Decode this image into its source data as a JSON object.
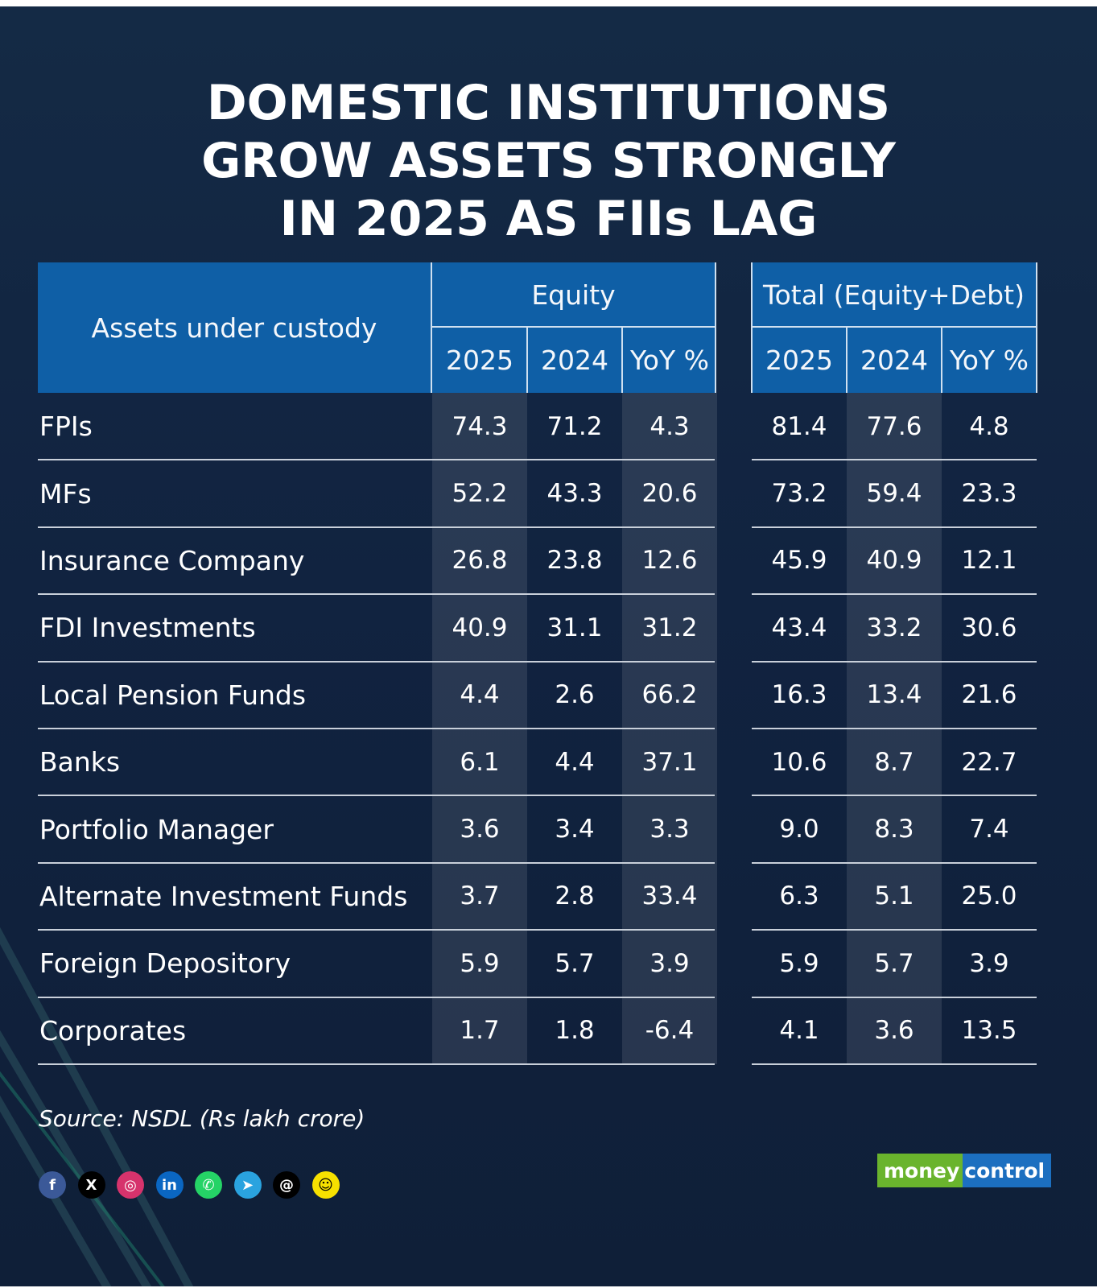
{
  "title_lines": [
    "DOMESTIC INSTITUTIONS",
    "GROW ASSETS STRONGLY",
    "IN 2025 AS FIIs LAG"
  ],
  "chart_data": {
    "type": "table",
    "row_header_label": "Assets under custody",
    "groups": [
      {
        "name": "Equity",
        "columns": [
          "2025",
          "2024",
          "YoY %"
        ]
      },
      {
        "name": "Total (Equity+Debt)",
        "columns": [
          "2025",
          "2024",
          "YoY %"
        ]
      }
    ],
    "rows": [
      {
        "label": "FPIs",
        "values": [
          "74.3",
          "71.2",
          "4.3",
          "81.4",
          "77.6",
          "4.8"
        ]
      },
      {
        "label": "MFs",
        "values": [
          "52.2",
          "43.3",
          "20.6",
          "73.2",
          "59.4",
          "23.3"
        ]
      },
      {
        "label": "Insurance Company",
        "values": [
          "26.8",
          "23.8",
          "12.6",
          "45.9",
          "40.9",
          "12.1"
        ]
      },
      {
        "label": "FDI Investments",
        "values": [
          "40.9",
          "31.1",
          "31.2",
          "43.4",
          "33.2",
          "30.6"
        ]
      },
      {
        "label": "Local Pension Funds",
        "values": [
          "4.4",
          "2.6",
          "66.2",
          "16.3",
          "13.4",
          "21.6"
        ]
      },
      {
        "label": "Banks",
        "values": [
          "6.1",
          "4.4",
          "37.1",
          "10.6",
          "8.7",
          "22.7"
        ]
      },
      {
        "label": "Portfolio Manager",
        "values": [
          "3.6",
          "3.4",
          "3.3",
          "9.0",
          "8.3",
          "7.4"
        ]
      },
      {
        "label": "Alternate Investment Funds",
        "values": [
          "3.7",
          "2.8",
          "33.4",
          "6.3",
          "5.1",
          "25.0"
        ]
      },
      {
        "label": "Foreign Depository",
        "values": [
          "5.9",
          "5.7",
          "3.9",
          "5.9",
          "5.7",
          "3.9"
        ]
      },
      {
        "label": "Corporates",
        "values": [
          "1.7",
          "1.8",
          "-6.4",
          "4.1",
          "3.6",
          "13.5"
        ]
      }
    ],
    "unit": "Rs lakh crore"
  },
  "source": "Source: NSDL (Rs lakh crore)",
  "social_icons": [
    {
      "name": "facebook-icon",
      "glyph": "f",
      "color": "#3b5998"
    },
    {
      "name": "x-icon",
      "glyph": "X",
      "color": "#000000"
    },
    {
      "name": "instagram-icon",
      "glyph": "◎",
      "color": "#d6336c"
    },
    {
      "name": "linkedin-icon",
      "glyph": "in",
      "color": "#0a66c2"
    },
    {
      "name": "whatsapp-icon",
      "glyph": "✆",
      "color": "#25d366"
    },
    {
      "name": "telegram-icon",
      "glyph": "➤",
      "color": "#2aa3df"
    },
    {
      "name": "threads-icon",
      "glyph": "@",
      "color": "#000000"
    },
    {
      "name": "snapchat-icon",
      "glyph": "☺",
      "color": "#f7e100"
    }
  ],
  "logo": {
    "left": "money",
    "right": "control"
  }
}
